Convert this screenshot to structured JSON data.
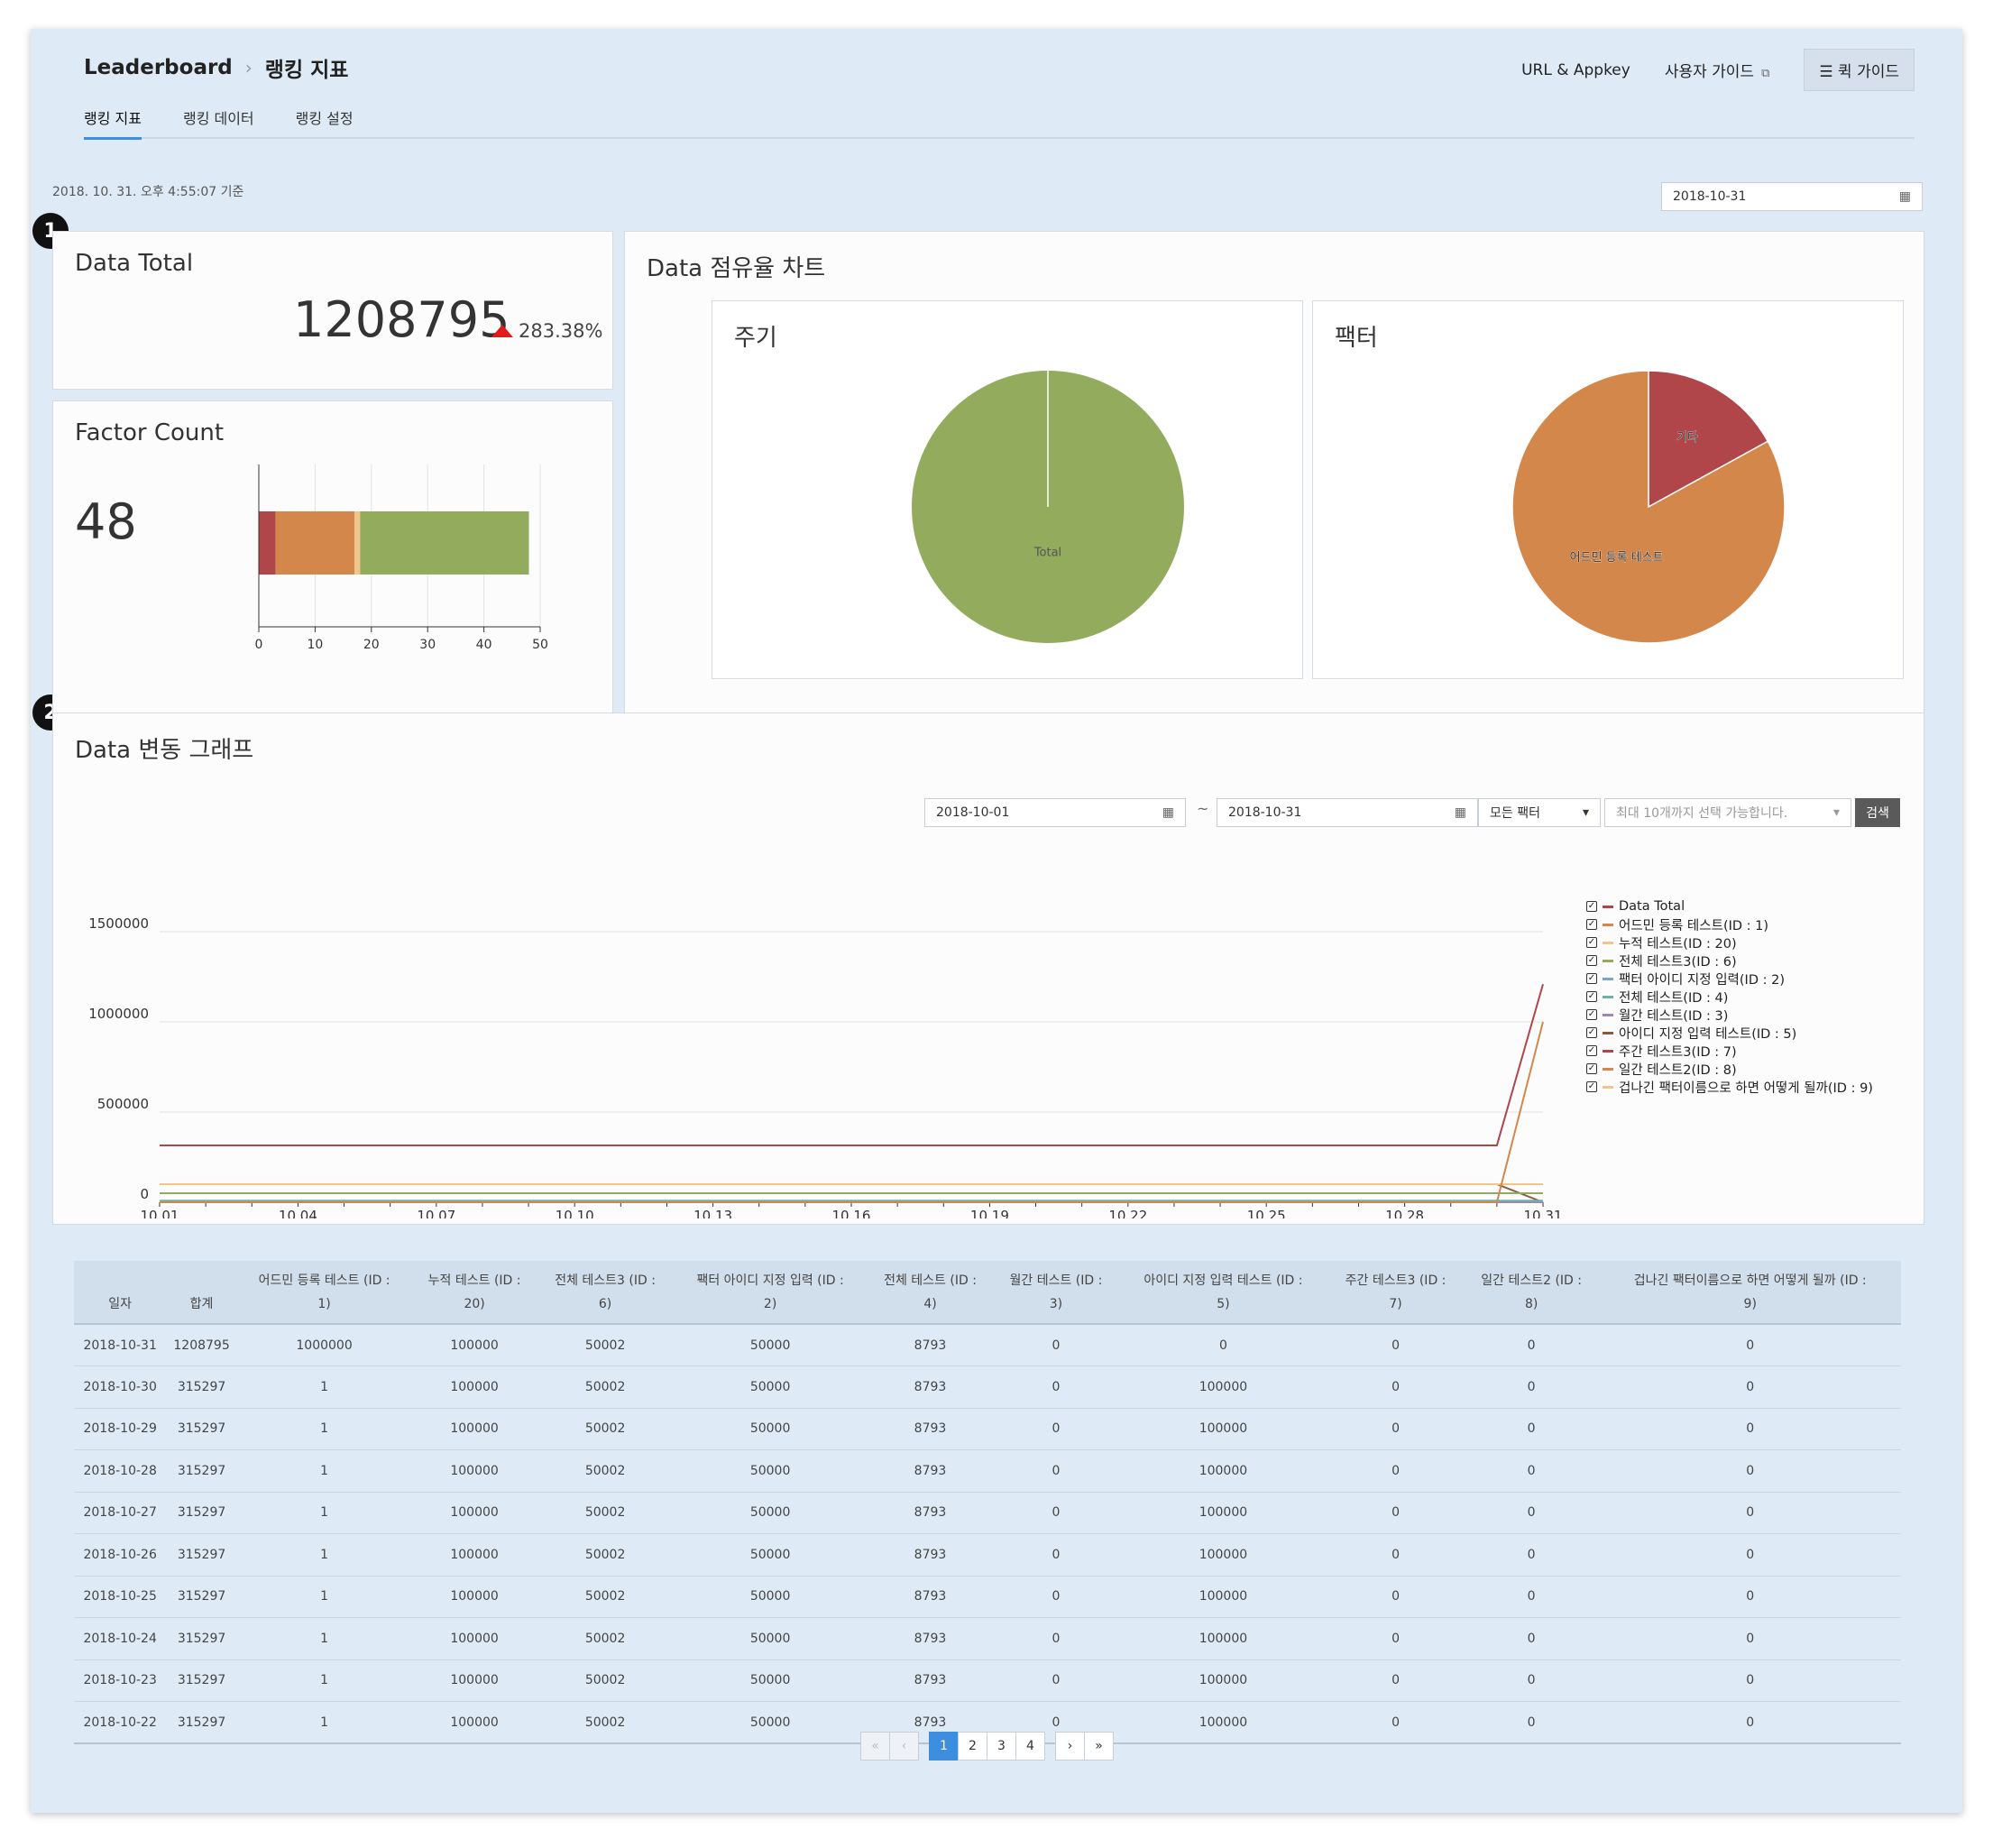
{
  "header": {
    "breadcrumb_root": "Leaderboard",
    "breadcrumb_current": "랭킹 지표",
    "url_appkey": "URL & Appkey",
    "user_guide": "사용자 가이드",
    "quick_guide": "퀵 가이드",
    "tabs": [
      {
        "label": "랭킹 지표"
      },
      {
        "label": "랭킹 데이터"
      },
      {
        "label": "랭킹 설정"
      }
    ]
  },
  "base_time": "2018. 10. 31. 오후 4:55:07 기준",
  "date_picker": "2018-10-31",
  "markers": [
    "1",
    "2"
  ],
  "data_total": {
    "title": "Data Total",
    "value": "1208795",
    "change": "283.38%"
  },
  "factor_count": {
    "title": "Factor Count",
    "value": "48"
  },
  "share_chart": {
    "title": "Data 점유율 차트",
    "period_title": "주기",
    "factor_title": "팩터"
  },
  "change_graph": {
    "title": "Data 변동 그래프",
    "from": "2018-10-01",
    "tilde": "~",
    "to": "2018-10-31",
    "factor_select": "모든 팩터",
    "multi_placeholder": "최대 10개까지 선택 가능합니다.",
    "search": "검색"
  },
  "colors": {
    "accent": "#3e8ee0",
    "red": "#b0454a",
    "orange": "#d4874a",
    "green": "#93ab5d",
    "light_orange": "#f2c38a"
  },
  "chart_data": [
    {
      "type": "bar",
      "orientation": "horizontal-stacked",
      "title": "Factor Count",
      "series": [
        {
          "name": "red",
          "values": [
            3
          ]
        },
        {
          "name": "orange",
          "values": [
            14
          ]
        },
        {
          "name": "light",
          "values": [
            1
          ]
        },
        {
          "name": "green",
          "values": [
            30
          ]
        }
      ],
      "xlim": [
        0,
        50
      ],
      "ticks": [
        "0",
        "10",
        "20",
        "30",
        "40",
        "50"
      ]
    },
    {
      "type": "pie",
      "title": "주기",
      "slices": [
        {
          "label": "Total",
          "value": 100
        }
      ]
    },
    {
      "type": "pie",
      "title": "팩터",
      "slices": [
        {
          "label": "기타",
          "value": 17
        },
        {
          "label": "어드민 등록 테스트",
          "value": 83
        }
      ]
    },
    {
      "type": "line",
      "title": "Data 변동 그래프",
      "x_ticks": [
        "10.01",
        "10.04",
        "10.07",
        "10.10",
        "10.13",
        "10.16",
        "10.19",
        "10.22",
        "10.25",
        "10.28",
        "10.31"
      ],
      "y_ticks": [
        "1500000",
        "1000000",
        "500000",
        "0"
      ],
      "ylim": [
        0,
        1500000
      ],
      "days": 31,
      "series": [
        {
          "name": "Data Total",
          "color": "#b0454a",
          "flat": 315297,
          "last": 1208795
        },
        {
          "name": "어드민 등록 테스트(ID : 1)",
          "color": "#d4874a",
          "flat": 1,
          "last": 1000000
        },
        {
          "name": "누적 테스트(ID : 20)",
          "color": "#f2c38a",
          "flat": 100000,
          "last": 100000
        },
        {
          "name": "전체 테스트3(ID : 6)",
          "color": "#93ab5d",
          "flat": 50002,
          "last": 50002
        },
        {
          "name": "팩터 아이디 지정 입력(ID : 2)",
          "color": "#7fa6c4",
          "flat": 50000,
          "last": 50000
        },
        {
          "name": "전체 테스트(ID : 4)",
          "color": "#6fb0a8",
          "flat": 8793,
          "last": 8793
        },
        {
          "name": "월간 테스트(ID : 3)",
          "color": "#9b88b4",
          "flat": 0,
          "last": 0
        },
        {
          "name": "아이디 지정 입력 테스트(ID : 5)",
          "color": "#8a5a3c",
          "flat": 100000,
          "last": 0
        },
        {
          "name": "주간 테스트3(ID : 7)",
          "color": "#b0454a",
          "flat": 0,
          "last": 0
        },
        {
          "name": "일간 테스트2(ID : 8)",
          "color": "#d4874a",
          "flat": 0,
          "last": 0
        },
        {
          "name": "겁나긴 팩터이름으로 하면 어떻게 될까(ID : 9)",
          "color": "#f2c38a",
          "flat": 0,
          "last": 0
        }
      ]
    }
  ],
  "table": {
    "headers": [
      [
        "일자"
      ],
      [
        "합계"
      ],
      [
        "어드민 등록 테스트 (ID :",
        "1)"
      ],
      [
        "누적 테스트 (ID :",
        "20)"
      ],
      [
        "전체 테스트3 (ID :",
        "6)"
      ],
      [
        "팩터 아이디 지정 입력 (ID :",
        "2)"
      ],
      [
        "전체 테스트 (ID :",
        "4)"
      ],
      [
        "월간 테스트 (ID :",
        "3)"
      ],
      [
        "아이디 지정 입력 테스트 (ID :",
        "5)"
      ],
      [
        "주간 테스트3 (ID :",
        "7)"
      ],
      [
        "일간 테스트2 (ID :",
        "8)"
      ],
      [
        "겁나긴 팩터이름으로 하면 어떻게 될까 (ID :",
        "9)"
      ]
    ],
    "rows": [
      [
        "2018-10-31",
        "1208795",
        "1000000",
        "100000",
        "50002",
        "50000",
        "8793",
        "0",
        "0",
        "0",
        "0",
        "0"
      ],
      [
        "2018-10-30",
        "315297",
        "1",
        "100000",
        "50002",
        "50000",
        "8793",
        "0",
        "100000",
        "0",
        "0",
        "0"
      ],
      [
        "2018-10-29",
        "315297",
        "1",
        "100000",
        "50002",
        "50000",
        "8793",
        "0",
        "100000",
        "0",
        "0",
        "0"
      ],
      [
        "2018-10-28",
        "315297",
        "1",
        "100000",
        "50002",
        "50000",
        "8793",
        "0",
        "100000",
        "0",
        "0",
        "0"
      ],
      [
        "2018-10-27",
        "315297",
        "1",
        "100000",
        "50002",
        "50000",
        "8793",
        "0",
        "100000",
        "0",
        "0",
        "0"
      ],
      [
        "2018-10-26",
        "315297",
        "1",
        "100000",
        "50002",
        "50000",
        "8793",
        "0",
        "100000",
        "0",
        "0",
        "0"
      ],
      [
        "2018-10-25",
        "315297",
        "1",
        "100000",
        "50002",
        "50000",
        "8793",
        "0",
        "100000",
        "0",
        "0",
        "0"
      ],
      [
        "2018-10-24",
        "315297",
        "1",
        "100000",
        "50002",
        "50000",
        "8793",
        "0",
        "100000",
        "0",
        "0",
        "0"
      ],
      [
        "2018-10-23",
        "315297",
        "1",
        "100000",
        "50002",
        "50000",
        "8793",
        "0",
        "100000",
        "0",
        "0",
        "0"
      ],
      [
        "2018-10-22",
        "315297",
        "1",
        "100000",
        "50002",
        "50000",
        "8793",
        "0",
        "100000",
        "0",
        "0",
        "0"
      ]
    ]
  },
  "pagination": {
    "first": "«",
    "prev": "‹",
    "pages": [
      "1",
      "2",
      "3",
      "4"
    ],
    "next": "›",
    "last": "»",
    "current": "1"
  }
}
